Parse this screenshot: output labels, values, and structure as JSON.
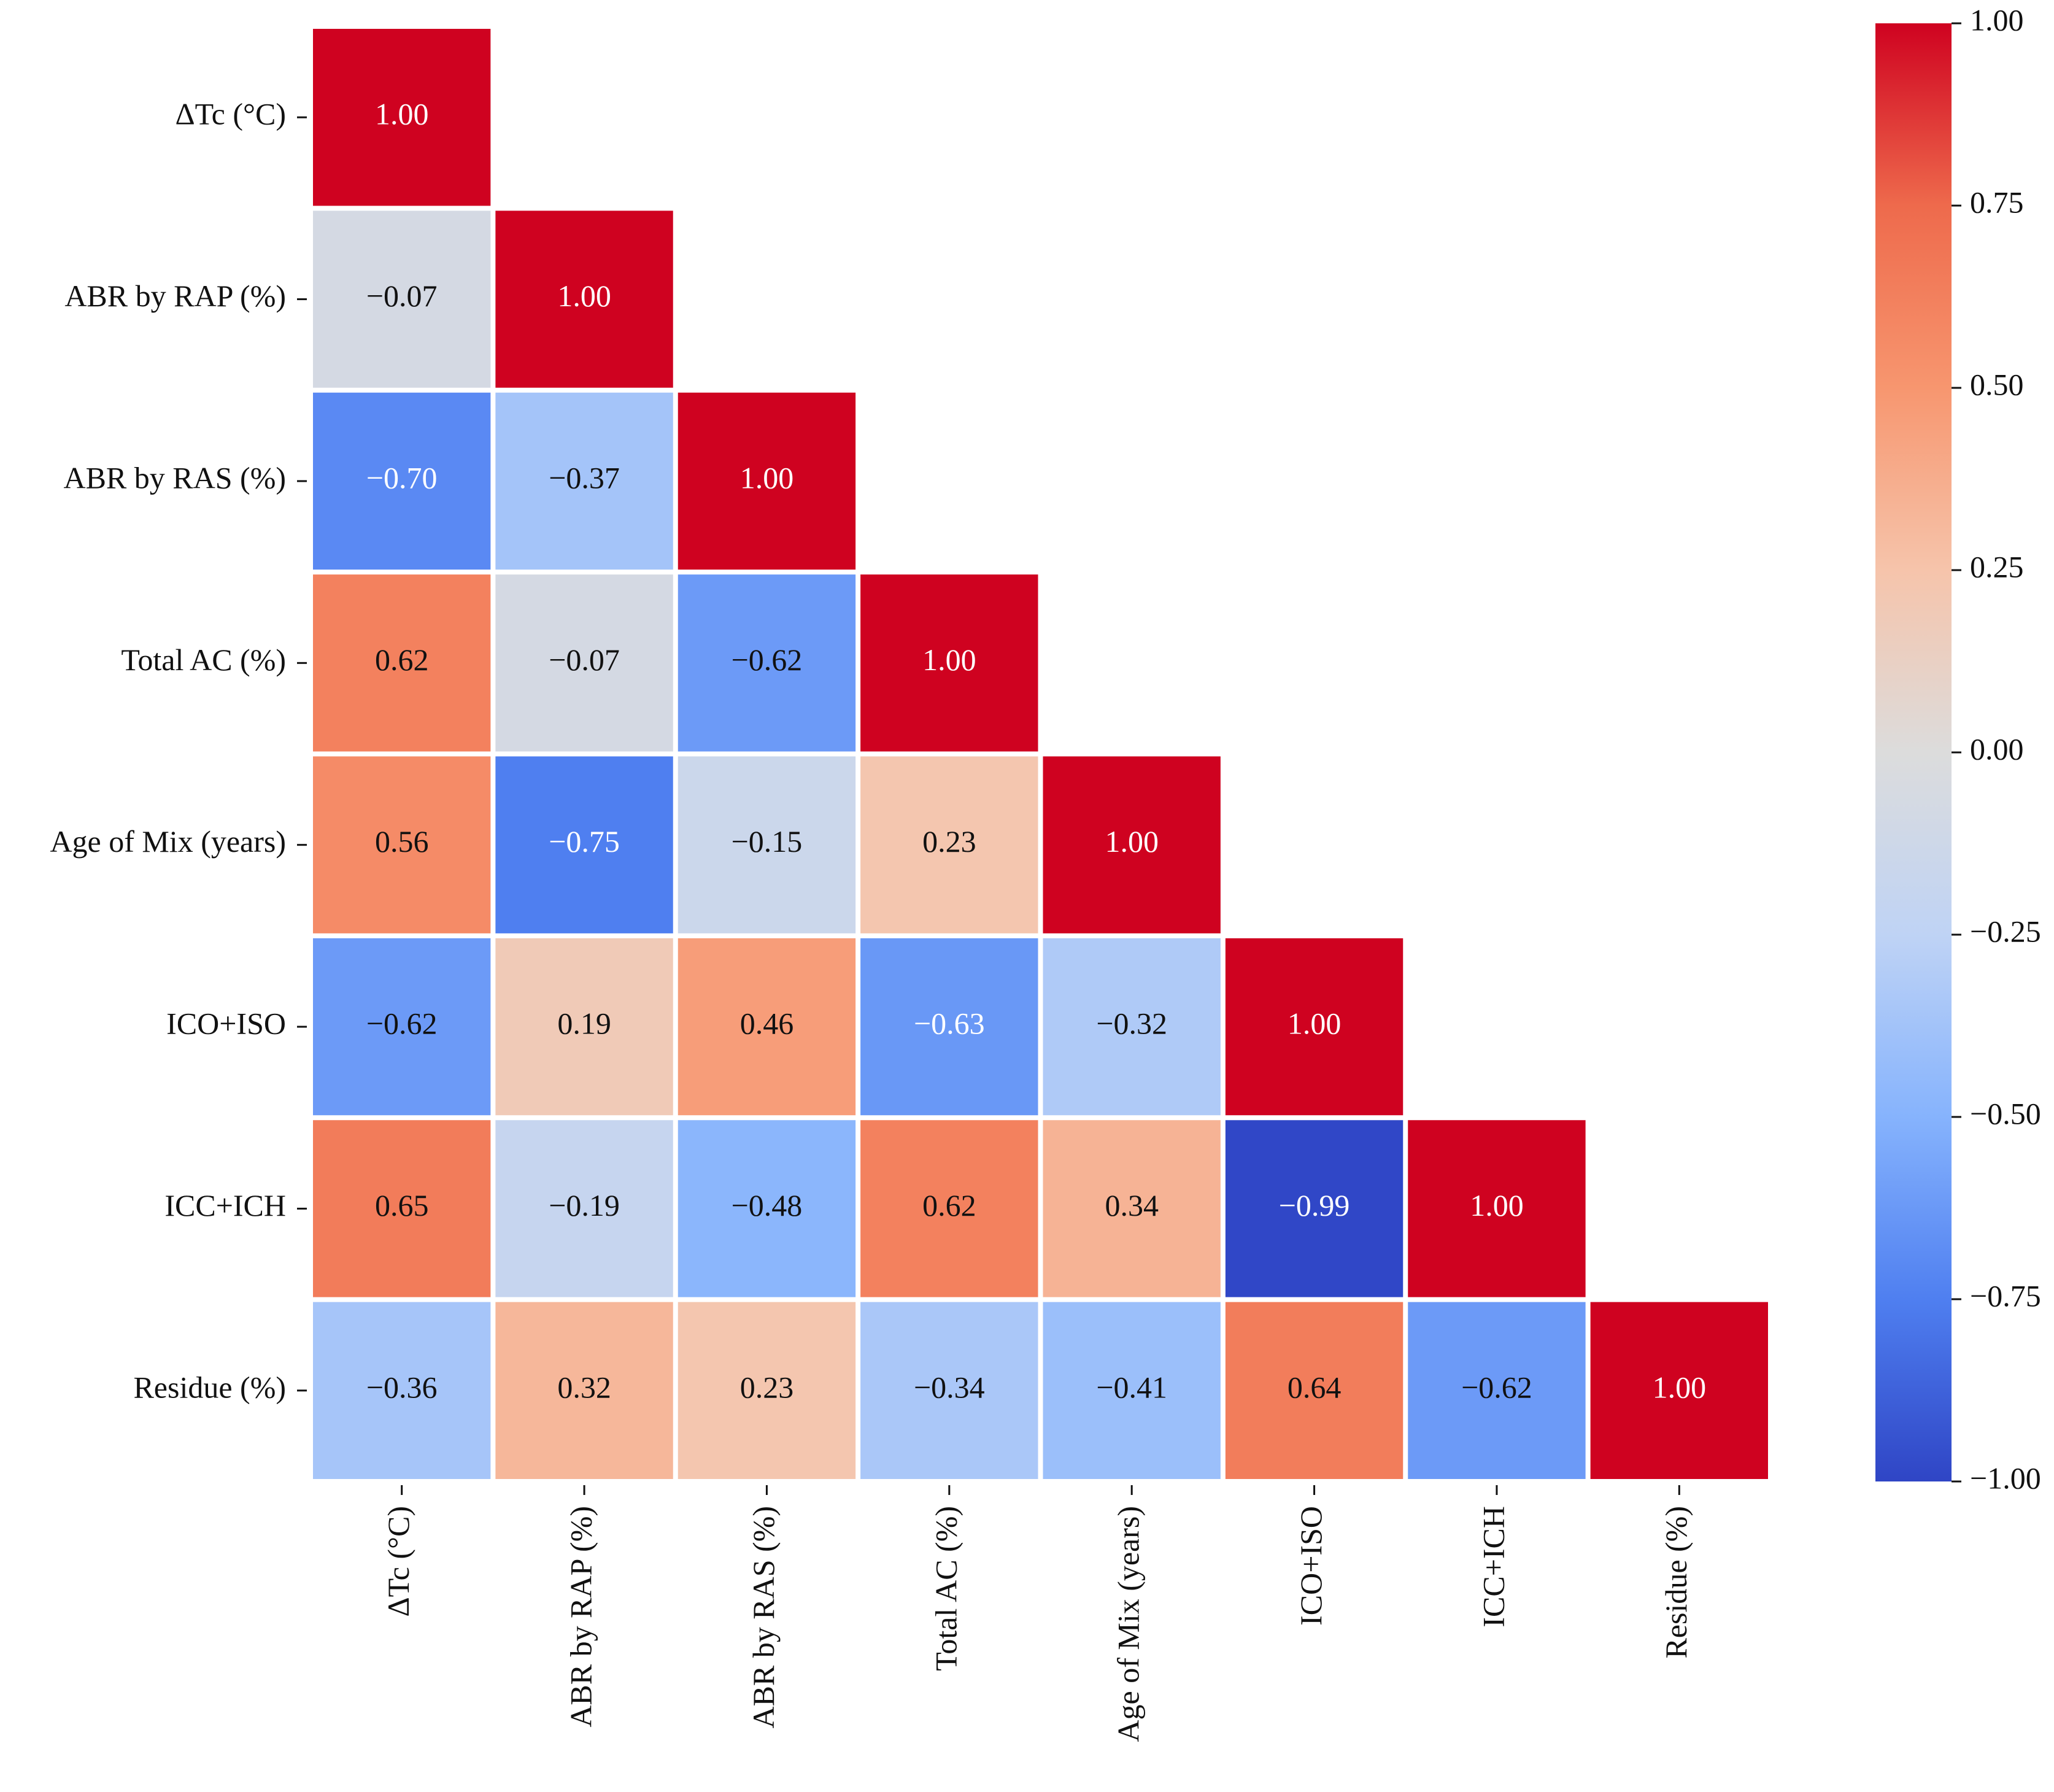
{
  "chart_data": {
    "type": "heatmap",
    "categories": [
      "ΔTc (°C)",
      "ABR by RAP (%)",
      "ABR by RAS (%)",
      "Total AC (%)",
      "Age of Mix (years)",
      "ICO+ISO",
      "ICC+ICH",
      "Residue (%)"
    ],
    "values": [
      [
        1
      ],
      [
        -0.07,
        1
      ],
      [
        -0.7,
        -0.37,
        1
      ],
      [
        0.62,
        -0.07,
        -0.62,
        1
      ],
      [
        0.56,
        -0.75,
        -0.15,
        0.23,
        1
      ],
      [
        -0.62,
        0.19,
        0.46,
        -0.63,
        -0.32,
        1
      ],
      [
        0.65,
        -0.19,
        -0.48,
        0.62,
        0.34,
        -0.99,
        1
      ],
      [
        -0.36,
        0.32,
        0.23,
        -0.34,
        -0.41,
        0.64,
        -0.62,
        1
      ]
    ],
    "value_labels": [
      [
        "1.00"
      ],
      [
        "−0.07",
        "1.00"
      ],
      [
        "−0.70",
        "−0.37",
        "1.00"
      ],
      [
        "0.62",
        "−0.07",
        "−0.62",
        "1.00"
      ],
      [
        "0.56",
        "−0.75",
        "−0.15",
        "0.23",
        "1.00"
      ],
      [
        "−0.62",
        "0.19",
        "0.46",
        "−0.63",
        "−0.32",
        "1.00"
      ],
      [
        "0.65",
        "−0.19",
        "−0.48",
        "0.62",
        "0.34",
        "−0.99",
        "1.00"
      ],
      [
        "−0.36",
        "0.32",
        "0.23",
        "−0.34",
        "−0.41",
        "0.64",
        "−0.62",
        "1.00"
      ]
    ],
    "zlim": [
      -1,
      1
    ],
    "colorscale": [
      "#2f45c5",
      "#4f7ff0",
      "#86b3fd",
      "#bfd3f5",
      "#dcdcdc",
      "#f6c4ab",
      "#f7966f",
      "#ee6a4c",
      "#cf0220"
    ],
    "colorbar_ticks": [
      {
        "value": 1,
        "label": "1.00"
      },
      {
        "value": 0.75,
        "label": "0.75"
      },
      {
        "value": 0.5,
        "label": "0.50"
      },
      {
        "value": 0.25,
        "label": "0.25"
      },
      {
        "value": 0,
        "label": "0.00"
      },
      {
        "value": -0.25,
        "label": "−0.25"
      },
      {
        "value": -0.5,
        "label": "−0.50"
      },
      {
        "value": -0.75,
        "label": "−0.75"
      },
      {
        "value": -1,
        "label": "−1.00"
      }
    ]
  }
}
